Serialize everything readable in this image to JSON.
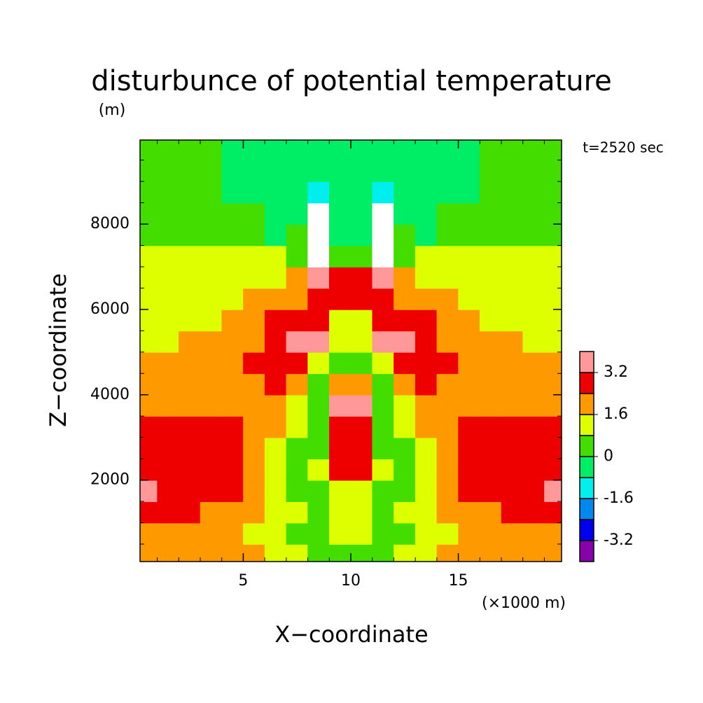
{
  "chart_data": {
    "type": "contour",
    "title": "disturbunce of potential temperature",
    "y_unit": "(m)",
    "annotation": "t=2520 sec",
    "x_label": "X−coordinate",
    "y_label": "Z−coordinate",
    "x_unit": "(×1000 m)",
    "xlim": [
      0.2,
      19.8
    ],
    "ylim": [
      90,
      9970
    ],
    "xticks": [
      5,
      10,
      15
    ],
    "yticks": [
      2000,
      4000,
      6000,
      8000
    ],
    "xminorticks": [
      1,
      2,
      3,
      4,
      6,
      7,
      8,
      9,
      11,
      12,
      13,
      14,
      16,
      17,
      18,
      19
    ],
    "yminorticks": [
      500,
      1000,
      1500,
      2500,
      3000,
      3500,
      4500,
      5000,
      5500,
      6500,
      7000,
      7500,
      8500,
      9000,
      9500
    ],
    "x": [
      0.5,
      1.5,
      2.5,
      3.5,
      4.5,
      5.5,
      6.5,
      7.5,
      8.5,
      9.5,
      10.5,
      11.5,
      12.5,
      13.5,
      14.5,
      15.5,
      16.5,
      17.5,
      18.5,
      19.5
    ],
    "z": [
      250,
      750,
      1250,
      1750,
      2250,
      2750,
      3250,
      3750,
      4250,
      4750,
      5250,
      5750,
      6250,
      6750,
      7250,
      7750,
      8250,
      8750,
      9250,
      9750
    ],
    "values": [
      [
        2.0,
        2.0,
        2.0,
        2.0,
        2.0,
        2.0,
        1.2,
        1.2,
        0.4,
        0.4,
        0.4,
        0.4,
        1.2,
        1.2,
        2.0,
        2.0,
        2.0,
        2.0,
        2.0,
        2.0
      ],
      [
        2.0,
        2.0,
        2.0,
        2.0,
        1.8,
        1.2,
        1.2,
        0.4,
        0.4,
        1.2,
        1.2,
        0.4,
        0.4,
        1.2,
        1.2,
        1.8,
        2.0,
        2.0,
        2.0,
        2.0
      ],
      [
        2.8,
        2.8,
        2.8,
        2.0,
        2.0,
        2.0,
        1.2,
        1.2,
        0.4,
        1.2,
        1.2,
        0.4,
        1.2,
        1.2,
        2.0,
        2.0,
        2.0,
        2.8,
        2.8,
        2.8
      ],
      [
        3.6,
        2.8,
        2.8,
        2.8,
        2.8,
        2.0,
        1.2,
        0.4,
        0.4,
        1.2,
        1.2,
        0.4,
        0.4,
        1.2,
        2.0,
        2.8,
        2.8,
        2.8,
        2.8,
        3.6
      ],
      [
        2.8,
        2.8,
        2.8,
        2.8,
        2.8,
        2.0,
        1.2,
        0.4,
        1.2,
        2.8,
        2.8,
        1.2,
        0.4,
        1.2,
        2.0,
        2.8,
        2.8,
        2.8,
        2.8,
        2.8
      ],
      [
        2.8,
        2.8,
        2.8,
        2.8,
        2.8,
        2.0,
        1.2,
        0.4,
        0.4,
        2.8,
        2.8,
        0.4,
        0.4,
        1.2,
        2.0,
        2.8,
        2.8,
        2.8,
        2.8,
        2.8
      ],
      [
        2.8,
        2.8,
        2.8,
        2.8,
        2.8,
        2.0,
        2.0,
        1.2,
        0.4,
        2.8,
        2.8,
        0.4,
        1.2,
        2.0,
        2.0,
        2.8,
        2.8,
        2.8,
        2.8,
        2.8
      ],
      [
        2.0,
        2.0,
        2.0,
        2.0,
        2.0,
        2.0,
        2.0,
        1.2,
        0.4,
        3.6,
        3.6,
        0.4,
        1.2,
        2.0,
        2.0,
        2.0,
        2.0,
        2.0,
        2.0,
        2.0
      ],
      [
        2.0,
        2.0,
        2.0,
        2.0,
        2.0,
        2.0,
        2.8,
        2.0,
        0.4,
        2.0,
        2.0,
        0.4,
        2.0,
        2.8,
        2.0,
        2.0,
        2.0,
        2.0,
        2.0,
        2.0
      ],
      [
        2.0,
        2.0,
        2.0,
        2.0,
        2.0,
        2.8,
        2.8,
        2.8,
        1.2,
        0.4,
        0.4,
        1.2,
        2.8,
        2.8,
        2.8,
        2.0,
        2.0,
        2.0,
        2.0,
        2.0
      ],
      [
        1.2,
        1.2,
        2.0,
        2.0,
        2.0,
        2.0,
        2.8,
        3.6,
        3.6,
        1.2,
        1.2,
        3.6,
        3.6,
        2.8,
        2.0,
        2.0,
        2.0,
        2.0,
        1.2,
        1.2
      ],
      [
        1.2,
        1.2,
        1.2,
        1.2,
        2.0,
        2.0,
        2.8,
        2.8,
        2.8,
        1.2,
        1.2,
        2.8,
        2.8,
        2.8,
        2.0,
        2.0,
        1.2,
        1.2,
        1.2,
        1.2
      ],
      [
        1.2,
        1.2,
        1.2,
        1.2,
        1.2,
        2.0,
        2.0,
        2.0,
        2.8,
        2.8,
        2.8,
        2.8,
        2.0,
        2.0,
        2.0,
        1.2,
        1.2,
        1.2,
        1.2,
        1.2
      ],
      [
        1.2,
        1.2,
        1.2,
        1.2,
        1.2,
        1.2,
        1.2,
        2.0,
        3.6,
        2.8,
        2.8,
        3.6,
        2.0,
        1.2,
        1.2,
        1.2,
        1.2,
        1.2,
        1.2,
        1.2
      ],
      [
        1.2,
        1.2,
        1.2,
        1.2,
        1.2,
        1.2,
        1.2,
        0.4,
        4.4,
        0.4,
        0.4,
        4.4,
        0.4,
        1.2,
        1.2,
        1.2,
        1.2,
        1.2,
        1.2,
        1.2
      ],
      [
        0.4,
        0.4,
        0.4,
        0.4,
        0.4,
        0.4,
        -0.4,
        0.4,
        4.4,
        -0.4,
        -0.4,
        4.4,
        0.4,
        -0.4,
        0.4,
        0.4,
        0.4,
        0.4,
        0.4,
        0.4
      ],
      [
        0.4,
        0.4,
        0.4,
        0.4,
        0.4,
        0.4,
        -0.4,
        -0.4,
        4.4,
        -0.4,
        -0.4,
        4.4,
        -0.4,
        -0.4,
        0.4,
        0.4,
        0.4,
        0.4,
        0.4,
        0.4
      ],
      [
        0.4,
        0.4,
        0.4,
        0.4,
        -0.4,
        -0.4,
        -0.4,
        -0.4,
        -1.2,
        -0.4,
        -0.4,
        -1.2,
        -0.4,
        -0.4,
        -0.4,
        -0.4,
        0.4,
        0.4,
        0.4,
        0.4
      ],
      [
        0.4,
        0.4,
        0.4,
        0.4,
        -0.4,
        -0.4,
        -0.4,
        -0.4,
        -0.4,
        -0.4,
        -0.4,
        -0.4,
        -0.4,
        -0.4,
        -0.4,
        -0.4,
        0.4,
        0.4,
        0.4,
        0.4
      ],
      [
        0.4,
        0.4,
        0.4,
        0.4,
        -0.4,
        -0.4,
        -0.4,
        -0.4,
        -0.4,
        -0.4,
        -0.4,
        -0.4,
        -0.4,
        -0.4,
        -0.4,
        -0.4,
        0.4,
        0.4,
        0.4,
        0.4
      ]
    ],
    "levels": [
      -4,
      -3.2,
      -2.4,
      -1.6,
      -0.8,
      0,
      0.8,
      1.6,
      2.4,
      3.2,
      4
    ],
    "colors": [
      "#8800aa",
      "#0000ee",
      "#0088ee",
      "#00eeee",
      "#00ee66",
      "#44dd00",
      "#ddff00",
      "#ff9900",
      "#ee0000",
      "#ff9999"
    ],
    "above_color": "#ffffff",
    "colorbar_ticks": [
      -3.2,
      -1.6,
      0,
      1.6,
      3.2
    ]
  }
}
